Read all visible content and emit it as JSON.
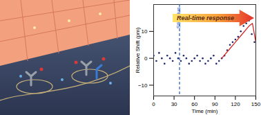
{
  "chart_data": {
    "type": "scatter",
    "x_label": "Time (min)",
    "y_label": "Relative Shift (pm)",
    "xlim": [
      0,
      150
    ],
    "xticks": [
      0,
      30,
      60,
      90,
      120,
      150
    ],
    "ylim": [
      -14,
      20
    ],
    "yticks": [
      -10,
      0,
      10
    ],
    "grid": false,
    "series": [
      {
        "type": "scatter",
        "color": "#1f2a6b",
        "marker": "circle",
        "x": [
          0,
          4,
          8,
          12,
          16,
          20,
          24,
          28,
          32,
          36,
          40,
          44,
          48,
          52,
          56,
          60,
          64,
          68,
          72,
          76,
          80,
          84,
          88,
          92,
          96,
          100,
          104,
          108,
          112,
          116,
          120,
          124,
          128,
          132,
          136,
          140,
          144,
          148
        ],
        "values": [
          1,
          -1,
          2,
          0,
          -2,
          1,
          0,
          -1,
          2,
          0,
          -1,
          1,
          0,
          -2,
          -1,
          0,
          1,
          -1,
          0,
          -2,
          -1,
          0,
          1,
          -2,
          -1,
          0,
          1,
          3,
          5,
          6,
          7,
          8,
          10,
          12,
          13,
          14,
          9,
          6
        ]
      },
      {
        "type": "line",
        "color": "#d62728",
        "line_style": "solid",
        "x": [
          100,
          110,
          120,
          130,
          140,
          145,
          150
        ],
        "values": [
          0,
          3,
          6,
          9,
          12,
          13,
          6
        ]
      }
    ],
    "annotations": [
      {
        "text": "Stimulus",
        "x": 38,
        "color": "#2255cc",
        "line_style": "dashed"
      },
      {
        "text": "Real-time response"
      }
    ]
  }
}
